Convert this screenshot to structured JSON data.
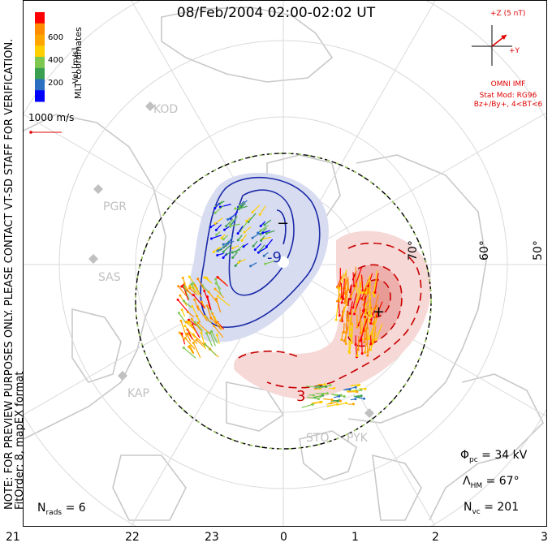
{
  "title": "08/Feb/2004 02:00-02:02 UT",
  "coordinates_label": "MLT coordinates",
  "color_scale": {
    "label": "Vel [m/s]",
    "ticks": [
      "600",
      "400",
      "200"
    ],
    "colors": [
      "#ff0000",
      "#ff8c00",
      "#ffa500",
      "#ffd000",
      "#7ec850",
      "#3aa050",
      "#2a6fc0",
      "#0000ff"
    ]
  },
  "vector_scale": {
    "label": "1000 m/s"
  },
  "latitude_labels": [
    "70°",
    "60°",
    "50°"
  ],
  "mlt_ticks": [
    "21",
    "22",
    "23",
    "0",
    "1",
    "2",
    "3"
  ],
  "station_labels": [
    {
      "name": "KOD"
    },
    {
      "name": "PGR"
    },
    {
      "name": "SAS"
    },
    {
      "name": "KAP"
    },
    {
      "name": "STO"
    },
    {
      "name": "PYK"
    }
  ],
  "contour_labels": {
    "negative": "-9",
    "positive": "3"
  },
  "cell_markers": {
    "min": "−",
    "max": "+"
  },
  "imf": {
    "z_label": "+Z (5 nT)",
    "y_label": "+Y",
    "source": "OMNI IMF",
    "model": "Stat Mod: RG96",
    "condition": "Bz+/By+, 4<BT<6",
    "color": "#e00000"
  },
  "notes": {
    "preview": "NOTE: FOR PREVIEW PURPOSES ONLY. PLEASE CONTACT VT-SD STAFF FOR VERIFICATION.",
    "fit": "FitOrder: 8, mapEX format"
  },
  "stats": {
    "nrads": "N",
    "nrads_sub": "rads",
    "nrads_val": "= 6",
    "phi": "Φ",
    "phi_sub": "pc",
    "phi_val": "= 34 kV",
    "lambda": "Λ",
    "lambda_sub": "HM",
    "lambda_val": "= 67°",
    "nvc": "N",
    "nvc_sub": "vc",
    "nvc_val": "= 201"
  }
}
